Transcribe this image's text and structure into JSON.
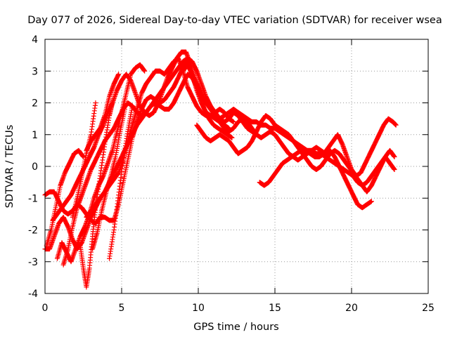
{
  "chart_data": {
    "type": "scatter",
    "title": "Day 077 of 2026, Sidereal Day-to-day VTEC variation (SDTVAR) for receiver wsea",
    "xlabel": "GPS time / hours",
    "ylabel": "SDTVAR / TECUs",
    "xlim": [
      0,
      25
    ],
    "ylim": [
      -4,
      4
    ],
    "xticks": [
      "0",
      "5",
      "10",
      "15",
      "20",
      "25"
    ],
    "yticks": [
      "-4",
      "-3",
      "-2",
      "-1",
      "0",
      "1",
      "2",
      "3",
      "4"
    ],
    "grid": true,
    "marker": "+",
    "color": "#ff0000",
    "series": [
      {
        "name": "track-1",
        "x": [
          0.0,
          0.3,
          0.6,
          0.9,
          1.2,
          1.5,
          1.8,
          2.1,
          2.4,
          2.7,
          3.0,
          3.3,
          3.6,
          3.9,
          4.2,
          4.5,
          4.8,
          5.1,
          5.4,
          5.7,
          6.0,
          6.3,
          6.6,
          6.9,
          7.2,
          7.5,
          7.8,
          8.1,
          8.4,
          8.7,
          9.0,
          9.3,
          9.6,
          9.9,
          10.2,
          10.5,
          10.8,
          11.1,
          11.4,
          11.7,
          12.0
        ],
        "y": [
          -0.9,
          -0.8,
          -0.8,
          -1.1,
          -1.4,
          -1.5,
          -1.4,
          -1.2,
          -1.3,
          -1.5,
          -1.7,
          -1.8,
          -1.6,
          -1.6,
          -1.7,
          -1.7,
          -1.2,
          -0.5,
          0.2,
          0.9,
          1.4,
          1.8,
          2.1,
          2.2,
          2.1,
          2.0,
          2.1,
          2.3,
          2.5,
          2.8,
          3.1,
          3.3,
          2.9,
          2.4,
          2.0,
          1.7,
          1.6,
          1.5,
          1.4,
          1.3,
          1.2
        ]
      },
      {
        "name": "track-2",
        "x": [
          0.0,
          0.3,
          0.6,
          0.9,
          1.2,
          1.5,
          1.8,
          2.1,
          2.4,
          2.7,
          3.0,
          3.3,
          3.6,
          3.9,
          4.2,
          4.5,
          4.8,
          5.1,
          5.4,
          5.7,
          6.0,
          6.3,
          6.6,
          6.9,
          7.2,
          7.5,
          7.8,
          8.1,
          8.4,
          8.7,
          9.0,
          9.3,
          9.6,
          9.9,
          10.2,
          10.5,
          10.8,
          11.1,
          11.4,
          11.7,
          12.0,
          12.3
        ],
        "y": [
          -2.6,
          -2.6,
          -2.2,
          -1.8,
          -1.6,
          -1.9,
          -2.3,
          -2.6,
          -2.4,
          -2.0,
          -1.6,
          -1.3,
          -1.0,
          -0.8,
          -0.6,
          -0.4,
          -0.2,
          0.2,
          0.8,
          1.3,
          1.8,
          2.3,
          2.6,
          2.8,
          3.0,
          3.0,
          2.9,
          3.1,
          3.3,
          3.4,
          3.0,
          2.5,
          2.2,
          1.9,
          1.7,
          1.6,
          1.6,
          1.7,
          1.8,
          1.7,
          1.5,
          1.4
        ]
      },
      {
        "name": "track-3",
        "x": [
          0.5,
          0.8,
          1.1,
          1.4,
          1.7,
          2.0,
          2.3,
          2.6,
          2.9,
          3.2,
          3.5,
          3.8,
          4.1,
          4.4,
          4.7,
          5.0,
          5.3,
          5.6,
          5.9,
          6.2,
          6.5,
          6.8,
          7.1,
          7.4,
          7.7,
          8.0,
          8.3,
          8.6,
          8.9,
          9.2,
          9.5,
          9.8,
          10.1,
          10.4,
          10.7,
          11.0,
          11.3,
          11.6,
          11.9,
          12.2
        ],
        "y": [
          -1.7,
          -1.5,
          -1.3,
          -1.1,
          -0.9,
          -0.6,
          -0.3,
          0.0,
          0.3,
          0.6,
          1.0,
          1.3,
          1.7,
          2.0,
          2.4,
          2.7,
          2.9,
          2.7,
          2.3,
          1.9,
          1.7,
          1.6,
          1.7,
          2.0,
          2.4,
          2.8,
          3.1,
          3.4,
          3.6,
          3.6,
          3.2,
          2.7,
          2.2,
          1.8,
          1.5,
          1.3,
          1.2,
          1.1,
          1.0,
          0.9
        ]
      },
      {
        "name": "track-4",
        "x": [
          1.2,
          1.5,
          1.8,
          2.1,
          2.4,
          2.7,
          3.0,
          3.3,
          3.6,
          3.9,
          4.2,
          4.5,
          4.8,
          5.1,
          5.4,
          5.7,
          6.0,
          6.3,
          6.6,
          6.9,
          7.2,
          7.5,
          7.8,
          8.1,
          8.4,
          8.7,
          9.0,
          9.3,
          9.6,
          9.9,
          10.2,
          10.5,
          10.8,
          11.1,
          11.4,
          11.7,
          12.0,
          12.3,
          12.6,
          12.9,
          13.2,
          13.5,
          13.8
        ],
        "y": [
          -3.1,
          -2.6,
          -1.9,
          -1.3,
          -0.9,
          -0.5,
          -0.1,
          0.2,
          0.5,
          0.8,
          1.0,
          1.2,
          1.5,
          1.8,
          2.0,
          1.9,
          1.7,
          1.6,
          1.7,
          1.9,
          2.0,
          1.9,
          1.8,
          1.8,
          2.0,
          2.3,
          2.6,
          2.9,
          2.8,
          2.5,
          2.2,
          2.0,
          1.9,
          1.7,
          1.5,
          1.4,
          1.5,
          1.7,
          1.6,
          1.4,
          1.2,
          1.1,
          1.0
        ]
      },
      {
        "name": "track-5",
        "x": [
          2.7,
          3.0,
          3.3,
          3.6,
          3.9,
          4.2,
          4.5,
          4.8,
          5.1,
          5.4,
          5.7,
          6.0,
          6.3,
          6.6,
          6.9,
          7.2,
          7.5,
          7.8,
          8.1,
          8.4,
          8.7,
          9.0,
          9.3,
          9.6,
          9.9,
          10.2,
          10.5,
          10.8,
          11.1,
          11.4,
          11.7,
          12.0,
          12.3,
          12.6,
          12.9,
          13.2,
          13.5,
          13.8,
          14.1,
          14.4,
          14.7,
          15.0,
          15.3,
          15.6,
          15.9,
          16.2,
          16.5,
          16.8,
          17.1,
          17.4,
          17.7,
          18.0,
          18.3,
          18.6,
          18.9,
          19.2,
          19.5,
          19.8,
          20.1,
          20.4,
          20.7,
          21.0,
          21.3,
          21.6,
          21.9,
          22.2,
          22.5,
          22.8
        ],
        "y": [
          -1.6,
          -1.4,
          -1.2,
          -1.0,
          -0.8,
          -0.5,
          -0.2,
          0.1,
          0.4,
          0.7,
          1.0,
          1.3,
          1.5,
          1.7,
          1.9,
          2.1,
          2.3,
          2.5,
          2.7,
          2.9,
          3.1,
          3.3,
          3.4,
          3.3,
          3.0,
          2.6,
          2.2,
          1.9,
          1.6,
          1.5,
          1.6,
          1.7,
          1.8,
          1.7,
          1.6,
          1.5,
          1.4,
          1.4,
          1.3,
          1.3,
          1.2,
          1.2,
          1.1,
          1.0,
          0.9,
          0.8,
          0.7,
          0.6,
          0.5,
          0.5,
          0.4,
          0.4,
          0.3,
          0.2,
          0.1,
          0.0,
          -0.1,
          -0.2,
          -0.3,
          -0.5,
          -0.6,
          -0.5,
          -0.3,
          -0.1,
          0.1,
          0.3,
          0.5,
          0.3
        ]
      },
      {
        "name": "track-6",
        "x": [
          9.0,
          9.3,
          9.6,
          9.9,
          10.2,
          10.5,
          10.8,
          11.1,
          11.4,
          11.7,
          12.0,
          12.3,
          12.6,
          12.9,
          13.2,
          13.5,
          13.8,
          14.1,
          14.4,
          14.7,
          15.0,
          15.3,
          15.6,
          15.9,
          16.2,
          16.5,
          16.8,
          17.1,
          17.4,
          17.7,
          18.0,
          18.3,
          18.6,
          18.9,
          19.2,
          19.5,
          19.8,
          20.1,
          20.4,
          20.7,
          21.0,
          21.3
        ],
        "y": [
          3.0,
          3.2,
          2.9,
          2.6,
          2.3,
          2.0,
          1.8,
          1.6,
          1.4,
          1.2,
          1.1,
          1.2,
          1.4,
          1.5,
          1.4,
          1.2,
          1.0,
          0.9,
          1.0,
          1.1,
          1.0,
          0.8,
          0.6,
          0.4,
          0.3,
          0.2,
          0.3,
          0.4,
          0.5,
          0.6,
          0.5,
          0.4,
          0.5,
          0.3,
          0.0,
          -0.3,
          -0.6,
          -0.9,
          -1.2,
          -1.3,
          -1.2,
          -1.1
        ]
      },
      {
        "name": "track-7",
        "x": [
          9.9,
          10.2,
          10.5,
          10.8,
          11.1,
          11.4,
          11.7,
          12.0,
          12.3,
          12.6,
          12.9,
          13.2,
          13.5,
          13.8,
          14.1,
          14.4,
          14.7,
          15.0,
          15.3,
          15.6,
          15.9,
          16.2,
          16.5,
          16.8,
          17.1,
          17.4,
          17.7,
          18.0,
          18.3,
          18.6,
          18.9,
          19.2,
          19.5,
          19.8,
          20.1,
          20.4,
          20.7,
          21.0,
          21.3,
          21.6,
          21.9,
          22.2,
          22.5,
          22.8
        ],
        "y": [
          1.3,
          1.1,
          0.9,
          0.8,
          0.9,
          1.0,
          0.9,
          0.8,
          0.6,
          0.4,
          0.5,
          0.6,
          0.8,
          1.1,
          1.4,
          1.6,
          1.5,
          1.3,
          1.2,
          1.1,
          1.0,
          0.8,
          0.6,
          0.4,
          0.2,
          0.0,
          -0.1,
          0.0,
          0.2,
          0.4,
          0.5,
          0.4,
          0.2,
          0.0,
          -0.2,
          -0.4,
          -0.6,
          -0.8,
          -0.6,
          -0.3,
          0.0,
          0.3,
          0.1,
          -0.1
        ]
      },
      {
        "name": "track-8",
        "x": [
          14.0,
          14.3,
          14.6,
          14.9,
          15.2,
          15.5,
          15.8,
          16.1,
          16.4,
          16.7,
          17.0,
          17.3,
          17.6,
          17.9,
          18.2,
          18.5,
          18.8,
          19.1,
          19.4,
          19.7,
          20.0,
          20.3,
          20.6,
          20.9,
          21.2,
          21.5,
          21.8,
          22.1,
          22.4,
          22.7,
          22.9
        ],
        "y": [
          -0.5,
          -0.6,
          -0.5,
          -0.3,
          -0.1,
          0.1,
          0.2,
          0.3,
          0.4,
          0.5,
          0.5,
          0.4,
          0.3,
          0.3,
          0.4,
          0.6,
          0.8,
          1.0,
          0.7,
          0.3,
          -0.1,
          -0.3,
          -0.2,
          0.1,
          0.4,
          0.7,
          1.0,
          1.3,
          1.5,
          1.4,
          1.3
        ]
      },
      {
        "name": "track-9",
        "x": [
          0.1,
          0.4,
          0.7,
          1.0,
          1.3,
          1.6,
          1.9,
          2.2,
          2.5
        ],
        "y": [
          -2.5,
          -2.0,
          -1.3,
          -0.6,
          -0.2,
          0.1,
          0.4,
          0.5,
          0.3
        ]
      },
      {
        "name": "track-10",
        "x": [
          0.8,
          1.1,
          1.4,
          1.7,
          2.0,
          2.3,
          2.6,
          2.9,
          3.2,
          3.5,
          3.8,
          4.1,
          4.4,
          4.7,
          5.0,
          5.3,
          5.6,
          5.9,
          6.2,
          6.5
        ],
        "y": [
          -2.9,
          -2.4,
          -2.7,
          -3.0,
          -2.6,
          -2.2,
          -1.9,
          -1.5,
          -1.0,
          -0.6,
          -0.3,
          0.1,
          0.5,
          1.1,
          1.7,
          2.3,
          2.9,
          3.1,
          3.2,
          3.0
        ]
      },
      {
        "name": "track-11",
        "x": [
          2.3,
          2.5,
          2.7,
          2.9,
          3.1,
          3.3,
          3.6,
          3.9,
          4.2,
          4.4
        ],
        "y": [
          -2.5,
          -3.2,
          -3.8,
          -3.2,
          -2.2,
          -1.3,
          -0.3,
          0.7,
          1.6,
          2.0
        ]
      },
      {
        "name": "track-12",
        "x": [
          3.1,
          3.4,
          3.7,
          4.0,
          4.3,
          4.6,
          4.9,
          5.2
        ],
        "y": [
          -2.6,
          -2.1,
          -1.4,
          -0.8,
          -0.3,
          0.3,
          1.1,
          1.8
        ]
      },
      {
        "name": "track-13",
        "x": [
          4.2,
          4.5,
          4.8,
          5.1,
          5.4,
          5.7
        ],
        "y": [
          -2.9,
          -2.0,
          -0.9,
          0.2,
          1.1,
          1.9
        ]
      },
      {
        "name": "track-14",
        "x": [
          1.8,
          2.1,
          2.4,
          2.7,
          3.0,
          3.3
        ],
        "y": [
          -1.6,
          -1.0,
          -0.3,
          0.4,
          1.0,
          2.0
        ]
      },
      {
        "name": "track-15",
        "x": [
          2.7,
          3.0,
          3.3,
          3.6,
          3.9,
          4.2,
          4.5,
          4.8
        ],
        "y": [
          0.5,
          0.8,
          1.0,
          1.2,
          1.6,
          2.2,
          2.6,
          2.9
        ]
      }
    ]
  }
}
